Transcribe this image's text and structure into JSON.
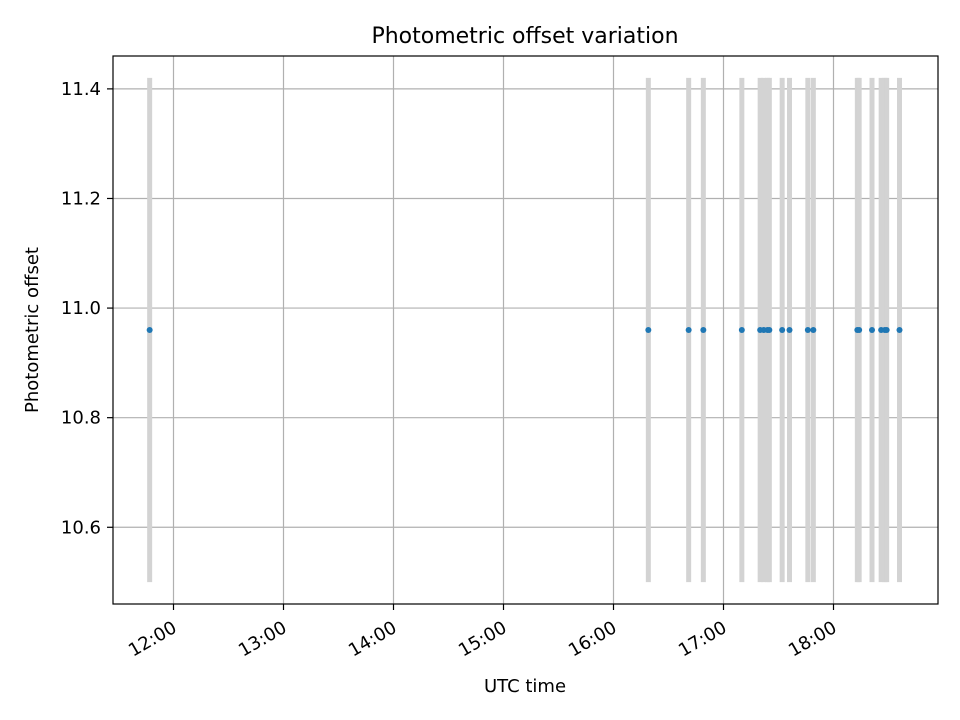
{
  "chart_data": {
    "type": "scatter",
    "title": "Photometric offset variation",
    "xlabel": "UTC time",
    "ylabel": "Photometric offset",
    "grid": true,
    "xlim": [
      "11:27",
      "18:57"
    ],
    "ylim": [
      10.46,
      11.46
    ],
    "x_ticks": [
      "12:00",
      "13:00",
      "14:00",
      "15:00",
      "16:00",
      "17:00",
      "18:00"
    ],
    "y_ticks": [
      10.6,
      10.8,
      11.0,
      11.2,
      11.4
    ],
    "points": [
      {
        "x": "11:47",
        "y": 10.96,
        "yerr": [
          10.5,
          11.42
        ]
      },
      {
        "x": "16:19",
        "y": 10.96,
        "yerr": [
          10.5,
          11.42
        ]
      },
      {
        "x": "16:41",
        "y": 10.96,
        "yerr": [
          10.5,
          11.42
        ]
      },
      {
        "x": "16:49",
        "y": 10.96,
        "yerr": [
          10.5,
          11.42
        ]
      },
      {
        "x": "17:10",
        "y": 10.96,
        "yerr": [
          10.5,
          11.42
        ]
      },
      {
        "x": "17:20",
        "y": 10.96,
        "yerr": [
          10.5,
          11.42
        ]
      },
      {
        "x": "17:22",
        "y": 10.96,
        "yerr": [
          10.5,
          11.42
        ]
      },
      {
        "x": "17:24",
        "y": 10.96,
        "yerr": [
          10.5,
          11.42
        ]
      },
      {
        "x": "17:25",
        "y": 10.96,
        "yerr": [
          10.5,
          11.42
        ]
      },
      {
        "x": "17:32",
        "y": 10.96,
        "yerr": [
          10.5,
          11.42
        ]
      },
      {
        "x": "17:36",
        "y": 10.96,
        "yerr": [
          10.5,
          11.42
        ]
      },
      {
        "x": "17:46",
        "y": 10.96,
        "yerr": [
          10.5,
          11.42
        ]
      },
      {
        "x": "17:49",
        "y": 10.96,
        "yerr": [
          10.5,
          11.42
        ]
      },
      {
        "x": "18:13",
        "y": 10.96,
        "yerr": [
          10.5,
          11.42
        ]
      },
      {
        "x": "18:14",
        "y": 10.96,
        "yerr": [
          10.5,
          11.42
        ]
      },
      {
        "x": "18:21",
        "y": 10.96,
        "yerr": [
          10.5,
          11.42
        ]
      },
      {
        "x": "18:26",
        "y": 10.96,
        "yerr": [
          10.5,
          11.42
        ]
      },
      {
        "x": "18:28",
        "y": 10.96,
        "yerr": [
          10.5,
          11.42
        ]
      },
      {
        "x": "18:29",
        "y": 10.96,
        "yerr": [
          10.5,
          11.42
        ]
      },
      {
        "x": "18:36",
        "y": 10.96,
        "yerr": [
          10.5,
          11.42
        ]
      }
    ],
    "colors": {
      "marker": "#1f77b4",
      "errorbar": "#d3d3d3",
      "grid": "#b0b0b0"
    }
  }
}
